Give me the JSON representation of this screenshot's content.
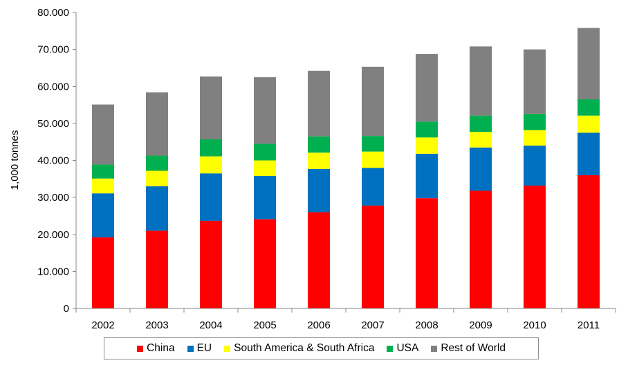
{
  "chart_data": {
    "type": "bar",
    "stacked": true,
    "ylabel": "1,000 tonnes",
    "xlabel": "",
    "ylim": [
      0,
      80000
    ],
    "yticks": [
      0,
      10000,
      20000,
      30000,
      40000,
      50000,
      60000,
      70000,
      80000
    ],
    "ytick_labels": [
      "0",
      "10.000",
      "20.000",
      "30.000",
      "40.000",
      "50.000",
      "60.000",
      "70.000",
      "80.000"
    ],
    "categories": [
      "2002",
      "2003",
      "2004",
      "2005",
      "2006",
      "2007",
      "2008",
      "2009",
      "2010",
      "2011"
    ],
    "series": [
      {
        "name": "China",
        "color": "#ff0000",
        "values": [
          19200,
          21000,
          23700,
          24100,
          26000,
          27800,
          29800,
          31800,
          33200,
          36000
        ]
      },
      {
        "name": "EU",
        "color": "#0070c0",
        "values": [
          11900,
          12000,
          12800,
          11700,
          11700,
          10200,
          12000,
          11700,
          10800,
          11500
        ]
      },
      {
        "name": "South America & South Africa",
        "color": "#ffff00",
        "values": [
          4000,
          4200,
          4600,
          4200,
          4400,
          4400,
          4400,
          4200,
          4200,
          4600
        ]
      },
      {
        "name": "USA",
        "color": "#00b050",
        "values": [
          3800,
          4100,
          4600,
          4500,
          4400,
          4200,
          4300,
          4400,
          4400,
          4400
        ]
      },
      {
        "name": "Rest of World",
        "color": "#808080",
        "values": [
          16200,
          17100,
          17000,
          18000,
          17700,
          18700,
          18300,
          18700,
          17400,
          19300
        ]
      }
    ],
    "grid": false,
    "legend_position": "bottom"
  }
}
